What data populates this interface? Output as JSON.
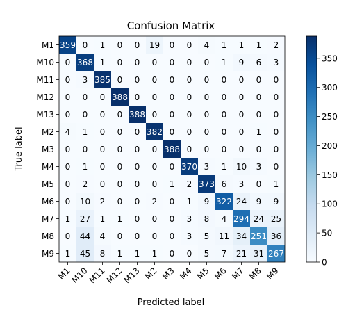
{
  "chart_data": {
    "type": "heatmap",
    "title": "Confusion Matrix",
    "xlabel": "Predicted label",
    "ylabel": "True label",
    "x_categories": [
      "M1",
      "M10",
      "M11",
      "M12",
      "M13",
      "M2",
      "M3",
      "M4",
      "M5",
      "M6",
      "M7",
      "M8",
      "M9"
    ],
    "y_categories": [
      "M1",
      "M10",
      "M11",
      "M12",
      "M13",
      "M2",
      "M3",
      "M4",
      "M5",
      "M6",
      "M7",
      "M8",
      "M9"
    ],
    "values": [
      [
        359,
        0,
        1,
        0,
        0,
        19,
        0,
        0,
        4,
        1,
        1,
        1,
        2
      ],
      [
        0,
        368,
        1,
        0,
        0,
        0,
        0,
        0,
        0,
        1,
        9,
        6,
        3
      ],
      [
        0,
        3,
        385,
        0,
        0,
        0,
        0,
        0,
        0,
        0,
        0,
        0,
        0
      ],
      [
        0,
        0,
        0,
        388,
        0,
        0,
        0,
        0,
        0,
        0,
        0,
        0,
        0
      ],
      [
        0,
        0,
        0,
        0,
        388,
        0,
        0,
        0,
        0,
        0,
        0,
        0,
        0
      ],
      [
        4,
        1,
        0,
        0,
        0,
        382,
        0,
        0,
        0,
        0,
        0,
        1,
        0
      ],
      [
        0,
        0,
        0,
        0,
        0,
        0,
        388,
        0,
        0,
        0,
        0,
        0,
        0
      ],
      [
        0,
        1,
        0,
        0,
        0,
        0,
        0,
        370,
        3,
        1,
        10,
        3,
        0
      ],
      [
        0,
        2,
        0,
        0,
        0,
        0,
        1,
        2,
        373,
        6,
        3,
        0,
        1
      ],
      [
        0,
        10,
        2,
        0,
        0,
        2,
        0,
        1,
        9,
        322,
        24,
        9,
        9
      ],
      [
        1,
        27,
        1,
        1,
        0,
        0,
        0,
        3,
        8,
        4,
        294,
        24,
        25
      ],
      [
        0,
        44,
        4,
        0,
        0,
        0,
        0,
        3,
        5,
        11,
        34,
        251,
        36
      ],
      [
        1,
        45,
        8,
        1,
        1,
        1,
        0,
        0,
        5,
        7,
        21,
        31,
        267
      ]
    ],
    "colormap": "Blues",
    "colorbar": {
      "range": [
        0,
        388
      ],
      "ticks": [
        0,
        50,
        100,
        150,
        200,
        250,
        300,
        350
      ]
    },
    "x_tick_rotation_deg": 45,
    "grid": false
  }
}
